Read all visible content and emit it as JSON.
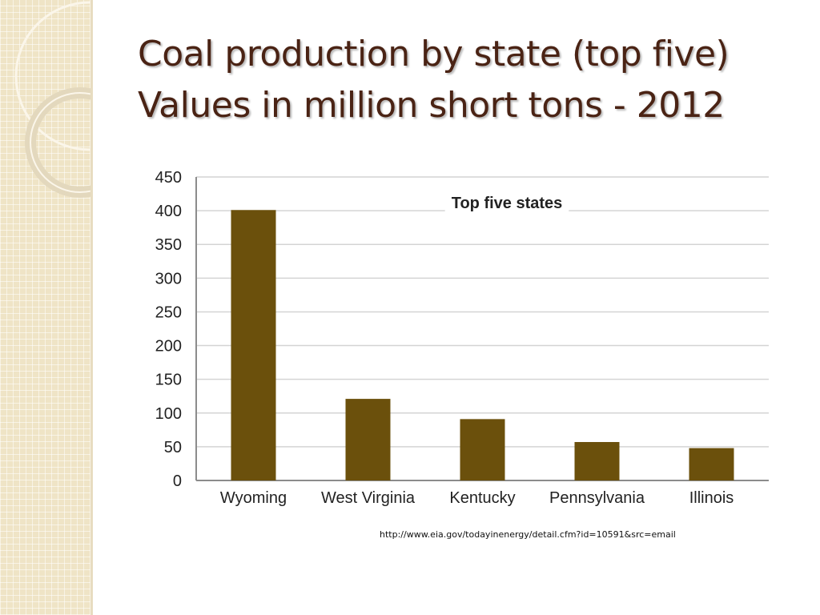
{
  "slide": {
    "title_line1": "Coal production by state (top five)",
    "title_line2": "Values in million short tons - 2012",
    "source_url": "http://www.eia.gov/todayinenergy/detail.cfm?id=10591&src=email"
  },
  "theme": {
    "title_color": "#4a2314",
    "band_color": "#efe4c6",
    "bar_color": "#6b500c",
    "grid_color": "#d4d4d4",
    "axis_color": "#8c8c8c"
  },
  "chart_data": {
    "type": "bar",
    "title": "Top five states",
    "categories": [
      "Wyoming",
      "West Virginia",
      "Kentucky",
      "Pennsylvania",
      "Illinois"
    ],
    "values": [
      401,
      121,
      91,
      57,
      48
    ],
    "xlabel": "",
    "ylabel": "",
    "ylim": [
      0,
      450
    ],
    "yticks": [
      0,
      50,
      100,
      150,
      200,
      250,
      300,
      350,
      400,
      450
    ],
    "grid": true,
    "legend": "none"
  }
}
